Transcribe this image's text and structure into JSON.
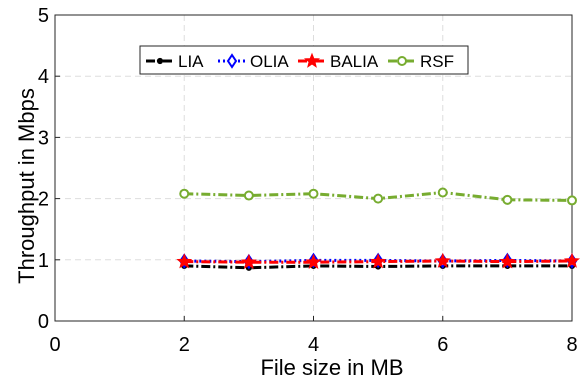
{
  "chart_data": {
    "type": "line",
    "xlabel": "File size in MB",
    "ylabel": "Throughput in Mbps",
    "xlim": [
      0,
      8
    ],
    "ylim": [
      0,
      5
    ],
    "xticks": [
      0,
      2,
      4,
      6,
      8
    ],
    "yticks": [
      0,
      1,
      2,
      3,
      4,
      5
    ],
    "grid": true,
    "legend_position": "top",
    "x": [
      2,
      3,
      4,
      5,
      6,
      7,
      8
    ],
    "series": [
      {
        "name": "LIA",
        "values": [
          0.9,
          0.87,
          0.9,
          0.89,
          0.9,
          0.9,
          0.9
        ],
        "color": "#000000",
        "marker": "dot",
        "dash": "dashdot"
      },
      {
        "name": "OLIA",
        "values": [
          0.98,
          0.97,
          0.99,
          0.99,
          0.98,
          0.99,
          0.98
        ],
        "color": "#0000ff",
        "marker": "diamond",
        "dash": "dotted"
      },
      {
        "name": "BALIA",
        "values": [
          0.97,
          0.96,
          0.96,
          0.97,
          0.98,
          0.97,
          0.98
        ],
        "color": "#ff0000",
        "marker": "star",
        "dash": "dashdot"
      },
      {
        "name": "RSF",
        "values": [
          2.08,
          2.05,
          2.08,
          2.0,
          2.1,
          1.98,
          1.97
        ],
        "color": "#77ac30",
        "marker": "circle",
        "dash": "dashdot"
      }
    ]
  }
}
